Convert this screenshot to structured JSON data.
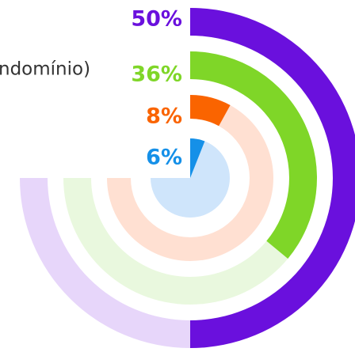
{
  "chart_data": {
    "type": "radial_bar",
    "annotation": "ndomínio)",
    "series": [
      {
        "color": "#6a10dd",
        "track_color": "#e7d6fa",
        "values": [
          50
        ],
        "value_labels": [
          "50%"
        ]
      },
      {
        "color": "#7fd628",
        "track_color": "#e9f8de",
        "values": [
          36
        ],
        "value_labels": [
          "36%"
        ]
      },
      {
        "color": "#fa6400",
        "track_color": "#ffe0d2",
        "values": [
          8
        ],
        "value_labels": [
          "8%"
        ]
      },
      {
        "color": "#1590e8",
        "track_color": "#cfe5fb",
        "values": [
          6
        ],
        "value_labels": [
          "6%"
        ]
      }
    ]
  }
}
